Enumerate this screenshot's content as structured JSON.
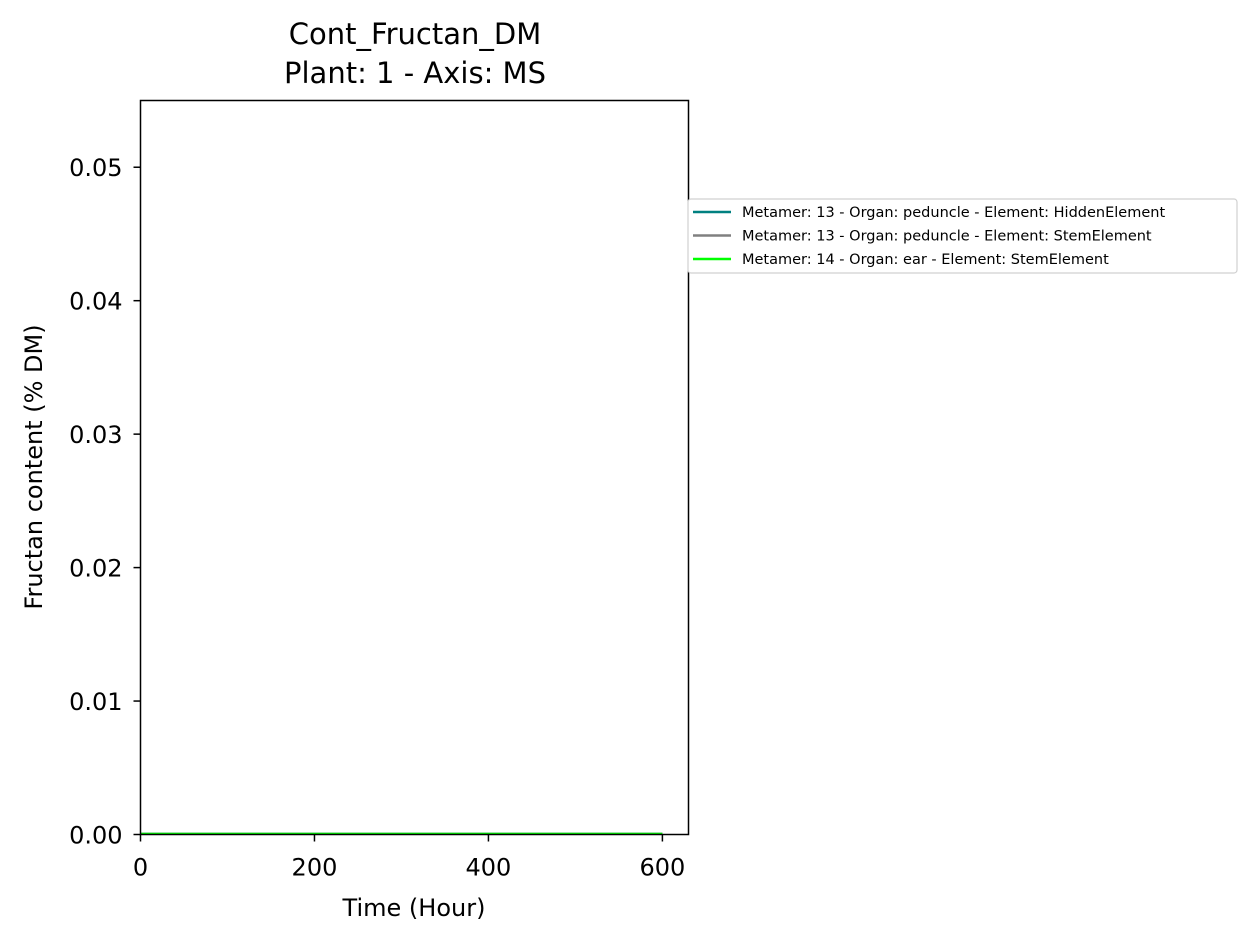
{
  "chart_data": {
    "type": "line",
    "title": "Cont_Fructan_DM",
    "subtitle": "Plant: 1 - Axis: MS",
    "xlabel": "Time (Hour)",
    "ylabel": "Fructan content (% DM)",
    "xlim": [
      0,
      630
    ],
    "ylim": [
      0,
      0.055
    ],
    "xticks": [
      0,
      200,
      400,
      600
    ],
    "xtick_labels": [
      "0",
      "200",
      "400",
      "600"
    ],
    "yticks": [
      0.0,
      0.01,
      0.02,
      0.03,
      0.04,
      0.05
    ],
    "ytick_labels": [
      "0.00",
      "0.01",
      "0.02",
      "0.03",
      "0.04",
      "0.05"
    ],
    "grid": false,
    "legend_position": "right, outside plot area",
    "series": [
      {
        "name": "Metamer: 13 - Organ: peduncle - Element: HiddenElement",
        "color": "#008080",
        "x": [
          0,
          600
        ],
        "y": [
          0,
          0
        ]
      },
      {
        "name": "Metamer: 13 - Organ: peduncle - Element: StemElement",
        "color": "#808080",
        "x": [
          0,
          600
        ],
        "y": [
          0,
          0
        ]
      },
      {
        "name": "Metamer: 14 - Organ: ear - Element: StemElement",
        "color": "#00ff00",
        "x": [
          0,
          600
        ],
        "y": [
          0,
          0
        ]
      }
    ]
  }
}
